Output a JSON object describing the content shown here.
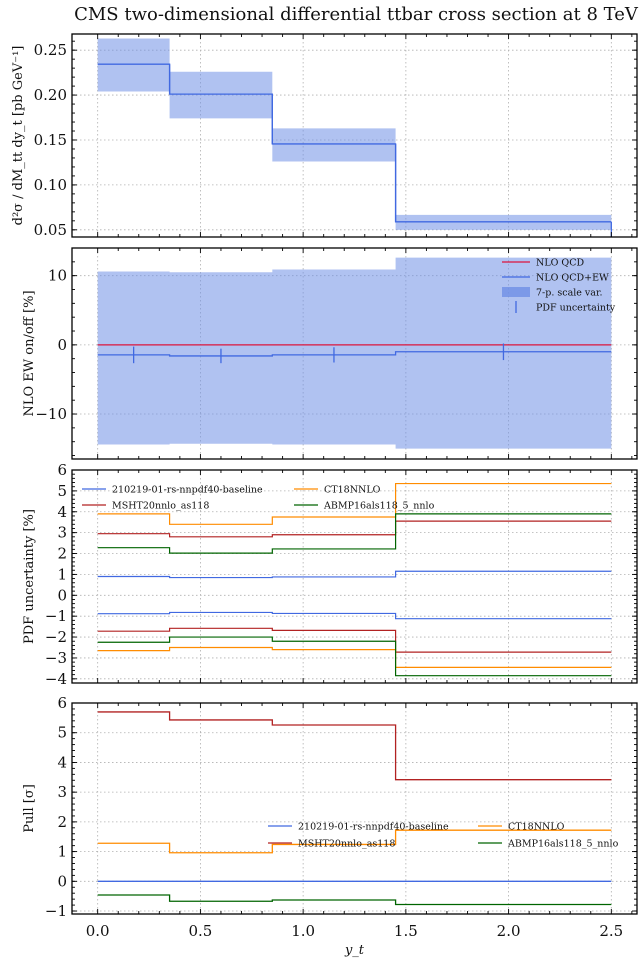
{
  "chart_data": {
    "title": "CMS two-dimensional differential ttbar cross section at 8 TeV",
    "xlabel": "y_t",
    "xlim": [
      -0.125,
      2.625
    ],
    "xticks": [
      0.0,
      0.5,
      1.0,
      1.5,
      2.0,
      2.5
    ],
    "xtick_labels": [
      "0.0",
      "0.5",
      "1.0",
      "1.5",
      "2.0",
      "2.5"
    ],
    "bin_edges": [
      0.0,
      0.35,
      0.85,
      1.45,
      2.5
    ],
    "grid": true,
    "colors": {
      "nnpdf": "#4169e1",
      "msht": "#b22222",
      "ct18": "#ff8c00",
      "abmp": "#006400",
      "qcd": "#dc143c",
      "band": "#6f8fe6"
    },
    "panels": [
      {
        "type": "line",
        "name": "cross-section",
        "ylabel": "d²σ / dM_tt dy_t [pb GeV⁻¹]",
        "ylim": [
          0.042,
          0.268
        ],
        "yticks": [
          0.05,
          0.1,
          0.15,
          0.2,
          0.25
        ],
        "ytick_labels": [
          "0.05",
          "0.10",
          "0.15",
          "0.20",
          "0.25"
        ],
        "series": [
          {
            "name": "central",
            "color_key": "nnpdf",
            "values": [
              0.2344,
              0.2011,
              0.1456,
              0.0589
            ],
            "band_upper": [
              0.263,
              0.226,
              0.163,
              0.0667
            ],
            "band_lower": [
              0.204,
              0.174,
              0.126,
              0.05
            ]
          }
        ]
      },
      {
        "type": "line",
        "name": "ew-ratio",
        "ylabel": "NLO EW on/off [%]",
        "ylim": [
          -16.5,
          14.0
        ],
        "yticks": [
          -10,
          0,
          10
        ],
        "ytick_labels": [
          "−10",
          "0",
          "10"
        ],
        "legend_position": "upper-right",
        "series": [
          {
            "name": "NLO QCD",
            "color_key": "qcd",
            "values": [
              0,
              0,
              0,
              0
            ]
          },
          {
            "name": "NLO QCD+EW",
            "color_key": "nnpdf",
            "values": [
              -1.45,
              -1.6,
              -1.45,
              -1.0
            ],
            "errorbar_x": [
              0.175,
              0.6,
              1.15,
              1.975
            ],
            "errorbar_halfwidth": [
              1.2,
              1.05,
              1.1,
              1.2
            ]
          },
          {
            "name": "7-p. scale var.",
            "color_key": "band",
            "kind": "band",
            "band_upper": [
              10.6,
              10.5,
              10.9,
              12.6
            ],
            "band_lower": [
              -14.4,
              -14.3,
              -14.4,
              -15.0
            ]
          },
          {
            "name": "PDF uncertainty",
            "color_key": "nnpdf",
            "kind": "errorbar"
          }
        ]
      },
      {
        "type": "line",
        "name": "pdf-uncertainty",
        "ylabel": "PDF uncertainty [%]",
        "ylim": [
          -4.2,
          6.0
        ],
        "yticks": [
          -4,
          -3,
          -2,
          -1,
          0,
          1,
          2,
          3,
          4,
          5,
          6
        ],
        "ytick_labels": [
          "−4",
          "−3",
          "−2",
          "−1",
          "0",
          "1",
          "2",
          "3",
          "4",
          "5",
          "6"
        ],
        "legend_position": "upper-left",
        "legend_columns": 2,
        "series": [
          {
            "name": "210219-01-rs-nnpdf40-baseline",
            "color_key": "nnpdf",
            "upper": [
              0.9,
              0.85,
              0.88,
              1.15
            ],
            "lower": [
              -0.88,
              -0.82,
              -0.87,
              -1.12
            ]
          },
          {
            "name": "MSHT20nnlo_as118",
            "color_key": "msht",
            "upper": [
              2.95,
              2.8,
              2.9,
              3.55
            ],
            "lower": [
              -1.72,
              -1.58,
              -1.68,
              -2.72
            ]
          },
          {
            "name": "CT18NNLO",
            "color_key": "ct18",
            "upper": [
              3.9,
              3.4,
              3.75,
              5.35
            ],
            "lower": [
              -2.65,
              -2.5,
              -2.6,
              -3.45
            ]
          },
          {
            "name": "ABMP16als118_5_nnlo",
            "color_key": "abmp",
            "upper": [
              2.28,
              2.02,
              2.22,
              3.9
            ],
            "lower": [
              -2.25,
              -2.0,
              -2.2,
              -3.85
            ]
          }
        ]
      },
      {
        "type": "line",
        "name": "pull",
        "ylabel": "Pull [σ]",
        "ylim": [
          -1.1,
          6.0
        ],
        "yticks": [
          -1,
          0,
          1,
          2,
          3,
          4,
          5,
          6
        ],
        "ytick_labels": [
          "−1",
          "0",
          "1",
          "2",
          "3",
          "4",
          "5",
          "6"
        ],
        "legend_position": "center-right",
        "legend_columns": 2,
        "series": [
          {
            "name": "210219-01-rs-nnpdf40-baseline",
            "color_key": "nnpdf",
            "values": [
              0,
              0,
              0,
              0
            ]
          },
          {
            "name": "MSHT20nnlo_as118",
            "color_key": "msht",
            "values": [
              5.7,
              5.43,
              5.26,
              3.42
            ]
          },
          {
            "name": "CT18NNLO",
            "color_key": "ct18",
            "values": [
              1.28,
              0.96,
              1.24,
              1.72
            ]
          },
          {
            "name": "ABMP16als118_5_nnlo",
            "color_key": "abmp",
            "values": [
              -0.46,
              -0.67,
              -0.63,
              -0.78
            ]
          }
        ]
      }
    ]
  }
}
